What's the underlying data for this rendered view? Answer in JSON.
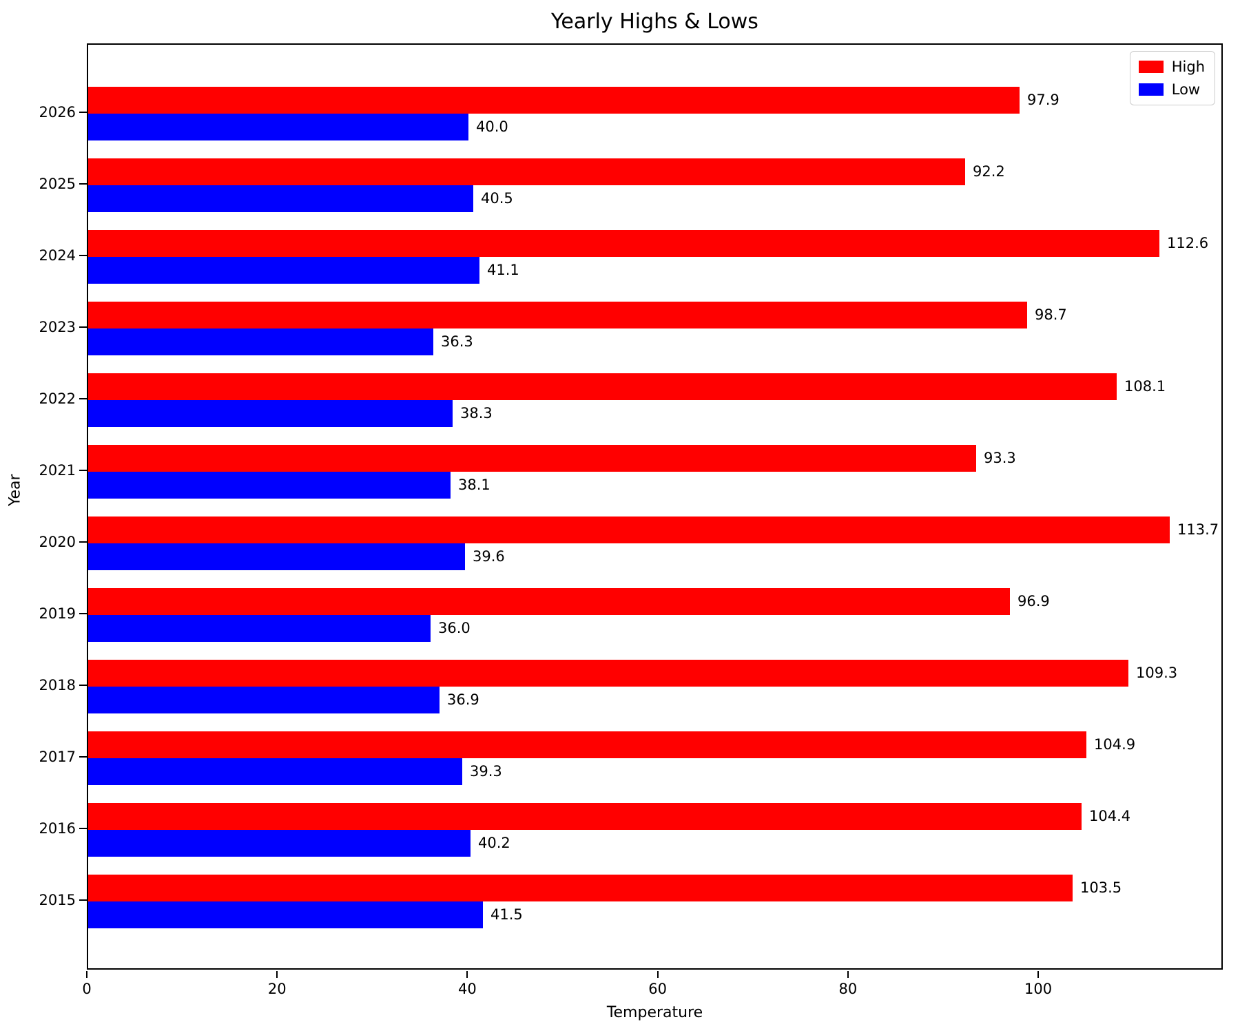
{
  "chart_data": {
    "type": "bar",
    "orientation": "horizontal",
    "title": "Yearly Highs & Lows",
    "xlabel": "Temperature",
    "ylabel": "Year",
    "categories": [
      "2026",
      "2025",
      "2024",
      "2023",
      "2022",
      "2021",
      "2020",
      "2019",
      "2018",
      "2017",
      "2016",
      "2015"
    ],
    "series": [
      {
        "name": "High",
        "color": "#ff0000",
        "values": [
          97.9,
          92.2,
          112.6,
          98.7,
          108.1,
          93.3,
          113.7,
          96.9,
          109.3,
          104.9,
          104.4,
          103.5
        ]
      },
      {
        "name": "Low",
        "color": "#0000ff",
        "values": [
          40.0,
          40.5,
          41.1,
          36.3,
          38.3,
          38.1,
          39.6,
          36.0,
          36.9,
          39.3,
          40.2,
          41.5
        ]
      }
    ],
    "xlim": [
      0,
      119.4
    ],
    "xticks": [
      0,
      20,
      40,
      60,
      80,
      100
    ],
    "legend_position": "top-right",
    "grid": false,
    "value_label_decimals": 1
  }
}
